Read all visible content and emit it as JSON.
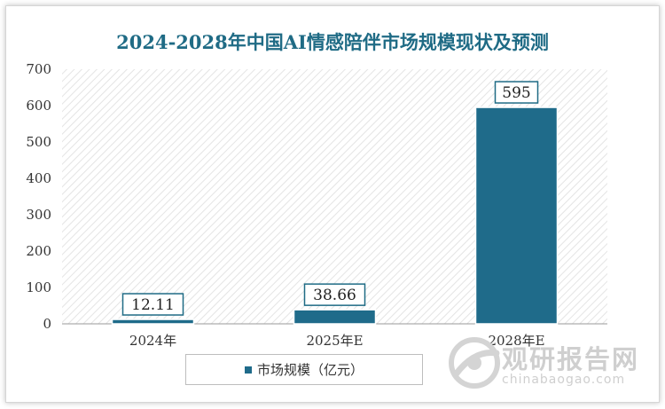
{
  "chart_data": {
    "type": "bar",
    "title": "2024-2028年中国AI情感陪伴市场规模现状及预测",
    "categories": [
      "2024年",
      "2025年E",
      "2028年E"
    ],
    "series": [
      {
        "name": "市场规模（亿元）",
        "values": [
          12.11,
          38.66,
          595
        ],
        "labels": [
          "12.11",
          "38.66",
          "595"
        ]
      }
    ],
    "ylim": [
      0,
      700
    ],
    "yticks": [
      0,
      100,
      200,
      300,
      400,
      500,
      600,
      700
    ],
    "grid": false,
    "legend": "bottom-center",
    "colors": {
      "bar": "#1f6b8a",
      "title": "#1f6b85"
    }
  },
  "watermark": {
    "cn": "观研报告网",
    "en": "chinabaogao.com"
  }
}
